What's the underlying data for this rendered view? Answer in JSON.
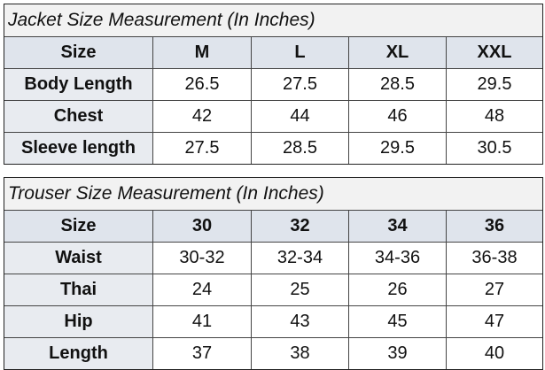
{
  "tables": [
    {
      "title": "Jacket Size Measurement (In Inches)",
      "header": [
        "Size",
        "M",
        "L",
        "XL",
        "XXL"
      ],
      "rows": [
        [
          "Body Length",
          "26.5",
          "27.5",
          "28.5",
          "29.5"
        ],
        [
          "Chest",
          "42",
          "44",
          "46",
          "48"
        ],
        [
          "Sleeve length",
          "27.5",
          "28.5",
          "29.5",
          "30.5"
        ]
      ]
    },
    {
      "title": "Trouser Size Measurement (In Inches)",
      "header": [
        "Size",
        "30",
        "32",
        "34",
        "36"
      ],
      "rows": [
        [
          "Waist",
          "30-32",
          "32-34",
          "34-36",
          "36-38"
        ],
        [
          "Thai",
          "24",
          "25",
          "26",
          "27"
        ],
        [
          "Hip",
          "41",
          "43",
          "45",
          "47"
        ],
        [
          "Length",
          "37",
          "38",
          "39",
          "40"
        ]
      ]
    }
  ]
}
